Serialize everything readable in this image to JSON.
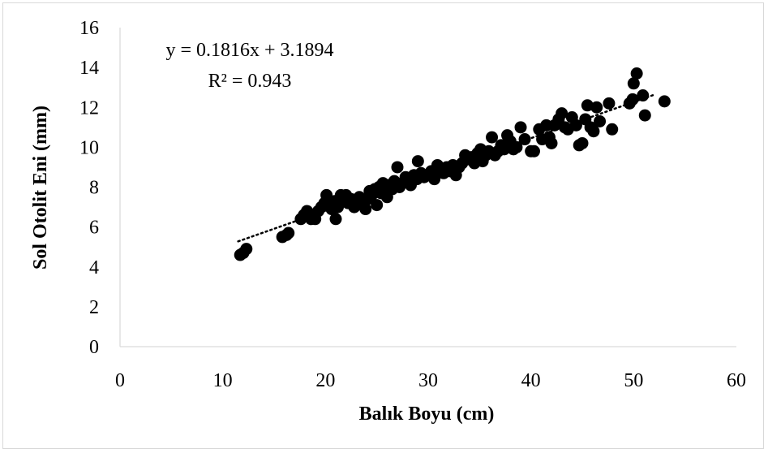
{
  "chart_data": {
    "type": "scatter",
    "xlabel": "Balık Boyu (cm)",
    "ylabel": "Sol Otolit Eni (mm)",
    "xlim": [
      0,
      60
    ],
    "ylim": [
      0,
      16
    ],
    "xticks": [
      "0",
      "10",
      "20",
      "30",
      "40",
      "50",
      "60"
    ],
    "yticks": [
      "0",
      "2",
      "4",
      "6",
      "8",
      "10",
      "12",
      "14",
      "16"
    ],
    "grid": false,
    "legend": "none",
    "trendline": {
      "style": "dotted",
      "slope": 0.1816,
      "intercept": 3.1894,
      "x_range": [
        11.5,
        52
      ],
      "equation": "y = 0.1816x + 3.1894",
      "r2": "R² = 0.943"
    },
    "marker_color": "#000000",
    "points": [
      [
        11.7,
        4.6
      ],
      [
        12.0,
        4.7
      ],
      [
        12.3,
        4.9
      ],
      [
        15.8,
        5.5
      ],
      [
        16.2,
        5.6
      ],
      [
        16.4,
        5.7
      ],
      [
        17.6,
        6.4
      ],
      [
        17.9,
        6.6
      ],
      [
        18.2,
        6.8
      ],
      [
        18.6,
        6.4
      ],
      [
        19.0,
        6.4
      ],
      [
        19.3,
        6.8
      ],
      [
        19.6,
        7.0
      ],
      [
        19.9,
        7.2
      ],
      [
        20.1,
        7.6
      ],
      [
        20.3,
        7.1
      ],
      [
        20.6,
        6.9
      ],
      [
        20.9,
        7.3
      ],
      [
        21.0,
        6.4
      ],
      [
        21.2,
        7.0
      ],
      [
        21.5,
        7.6
      ],
      [
        21.8,
        7.3
      ],
      [
        22.0,
        7.6
      ],
      [
        22.2,
        7.2
      ],
      [
        22.5,
        7.4
      ],
      [
        22.8,
        7.0
      ],
      [
        23.0,
        7.3
      ],
      [
        23.3,
        7.5
      ],
      [
        23.6,
        7.1
      ],
      [
        23.9,
        6.9
      ],
      [
        24.1,
        7.4
      ],
      [
        24.3,
        7.8
      ],
      [
        24.5,
        7.6
      ],
      [
        24.8,
        7.9
      ],
      [
        25.0,
        7.1
      ],
      [
        25.2,
        8.0
      ],
      [
        25.4,
        7.7
      ],
      [
        25.6,
        8.2
      ],
      [
        25.8,
        7.8
      ],
      [
        26.0,
        7.5
      ],
      [
        26.2,
        8.1
      ],
      [
        26.5,
        7.9
      ],
      [
        26.7,
        8.3
      ],
      [
        27.0,
        9.0
      ],
      [
        27.2,
        8.0
      ],
      [
        27.5,
        8.2
      ],
      [
        27.8,
        8.5
      ],
      [
        28.0,
        8.3
      ],
      [
        28.3,
        8.1
      ],
      [
        28.6,
        8.6
      ],
      [
        28.9,
        8.4
      ],
      [
        29.0,
        9.3
      ],
      [
        29.3,
        8.7
      ],
      [
        29.6,
        8.5
      ],
      [
        30.0,
        8.6
      ],
      [
        30.3,
        8.8
      ],
      [
        30.6,
        8.4
      ],
      [
        30.9,
        9.1
      ],
      [
        31.2,
        8.9
      ],
      [
        31.5,
        8.7
      ],
      [
        31.8,
        9.0
      ],
      [
        32.1,
        8.8
      ],
      [
        32.4,
        9.1
      ],
      [
        32.7,
        8.6
      ],
      [
        33.0,
        9.0
      ],
      [
        33.3,
        9.2
      ],
      [
        33.6,
        9.6
      ],
      [
        33.9,
        9.4
      ],
      [
        34.2,
        9.5
      ],
      [
        34.5,
        9.2
      ],
      [
        34.8,
        9.7
      ],
      [
        35.1,
        9.9
      ],
      [
        35.3,
        9.3
      ],
      [
        35.6,
        9.6
      ],
      [
        35.9,
        9.8
      ],
      [
        36.2,
        10.5
      ],
      [
        36.5,
        9.6
      ],
      [
        36.8,
        9.8
      ],
      [
        37.1,
        10.1
      ],
      [
        37.4,
        9.9
      ],
      [
        37.7,
        10.6
      ],
      [
        38.0,
        10.3
      ],
      [
        38.3,
        9.9
      ],
      [
        38.6,
        10.0
      ],
      [
        39.0,
        11.0
      ],
      [
        39.4,
        10.4
      ],
      [
        40.0,
        9.8
      ],
      [
        40.3,
        9.8
      ],
      [
        40.8,
        10.9
      ],
      [
        41.1,
        10.4
      ],
      [
        41.5,
        11.1
      ],
      [
        41.8,
        10.5
      ],
      [
        42.0,
        10.2
      ],
      [
        42.3,
        11.1
      ],
      [
        42.7,
        11.4
      ],
      [
        43.0,
        11.7
      ],
      [
        43.3,
        11.0
      ],
      [
        43.6,
        10.9
      ],
      [
        44.0,
        11.5
      ],
      [
        44.4,
        11.1
      ],
      [
        44.7,
        10.1
      ],
      [
        45.0,
        10.2
      ],
      [
        45.3,
        11.4
      ],
      [
        45.5,
        12.1
      ],
      [
        45.8,
        11.0
      ],
      [
        46.1,
        10.8
      ],
      [
        46.4,
        12.0
      ],
      [
        46.7,
        11.3
      ],
      [
        47.6,
        12.2
      ],
      [
        47.9,
        10.9
      ],
      [
        49.6,
        12.2
      ],
      [
        49.9,
        12.4
      ],
      [
        50.0,
        13.2
      ],
      [
        50.3,
        13.7
      ],
      [
        50.9,
        12.6
      ],
      [
        51.1,
        11.6
      ],
      [
        53.0,
        12.3
      ]
    ]
  }
}
